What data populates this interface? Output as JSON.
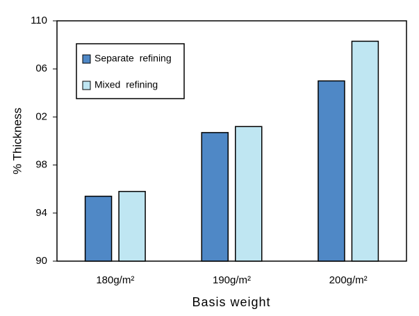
{
  "chart_data": {
    "type": "bar",
    "x_label": "Basis weight",
    "y_label": "% Thickness",
    "categories": [
      "180g/m²",
      "190g/m²",
      "200g/m²"
    ],
    "series": [
      {
        "name": "Separate refining",
        "color": "#4f88c6",
        "values": [
          95.4,
          100.7,
          105.0
        ]
      },
      {
        "name": "Mixed refining",
        "color": "#bfe6f2",
        "values": [
          95.8,
          101.2,
          108.3
        ]
      }
    ],
    "ylim": [
      90,
      110
    ],
    "yticks": [
      90,
      94,
      98,
      {
        "value": 102,
        "label": "02"
      },
      {
        "value": 106,
        "label": "06"
      },
      110
    ],
    "grid": false,
    "legend": "upper left"
  }
}
